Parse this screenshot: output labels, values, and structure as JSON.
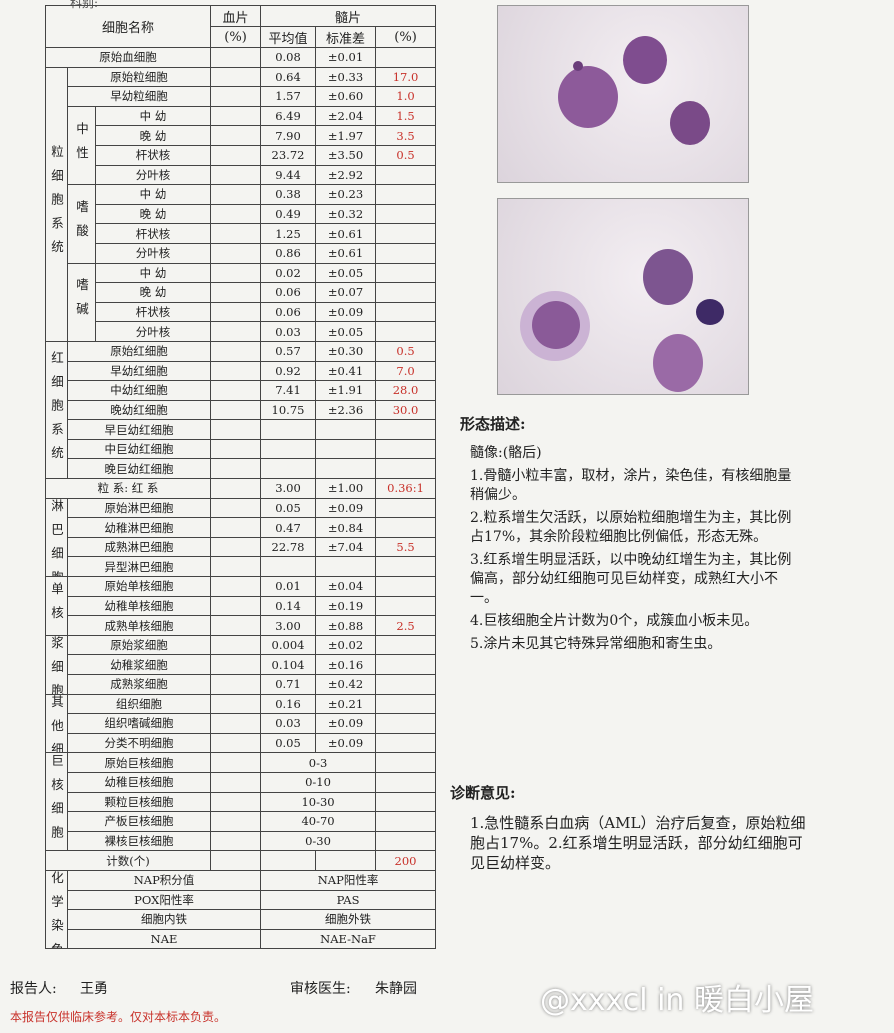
{
  "header": {
    "department": "科别:"
  },
  "table": {
    "columns": {
      "cell_name": "细胞名称",
      "blood": "血片",
      "blood_unit": "(%)",
      "marrow": "髓片",
      "mean": "平均值",
      "sd": "标准差",
      "marrow_unit": "(%)"
    },
    "sections": [
      {
        "rows": [
          {
            "name": "原始血细胞",
            "mean": "0.08",
            "sd": "±0.01"
          }
        ]
      },
      {
        "label": "粒细胞系统",
        "rows": [
          {
            "name": "原始粒细胞",
            "mean": "0.64",
            "sd": "±0.33",
            "pct": "17.0"
          },
          {
            "name": "早幼粒细胞",
            "mean": "1.57",
            "sd": "±0.60",
            "pct": "1.0"
          },
          {
            "label": "中性",
            "rows": [
              {
                "name": "中 幼",
                "mean": "6.49",
                "sd": "±2.04",
                "pct": "1.5"
              },
              {
                "name": "晚 幼",
                "mean": "7.90",
                "sd": "±1.97",
                "pct": "3.5"
              },
              {
                "name": "杆状核",
                "mean": "23.72",
                "sd": "±3.50",
                "pct": "0.5"
              },
              {
                "name": "分叶核",
                "mean": "9.44",
                "sd": "±2.92"
              }
            ]
          },
          {
            "label": "嗜酸",
            "rows": [
              {
                "name": "中 幼",
                "mean": "0.38",
                "sd": "±0.23"
              },
              {
                "name": "晚 幼",
                "mean": "0.49",
                "sd": "±0.32"
              },
              {
                "name": "杆状核",
                "mean": "1.25",
                "sd": "±0.61"
              },
              {
                "name": "分叶核",
                "mean": "0.86",
                "sd": "±0.61"
              }
            ]
          },
          {
            "label": "嗜碱",
            "rows": [
              {
                "name": "中 幼",
                "mean": "0.02",
                "sd": "±0.05"
              },
              {
                "name": "晚 幼",
                "mean": "0.06",
                "sd": "±0.07"
              },
              {
                "name": "杆状核",
                "mean": "0.06",
                "sd": "±0.09"
              },
              {
                "name": "分叶核",
                "mean": "0.03",
                "sd": "±0.05"
              }
            ]
          }
        ]
      },
      {
        "label": "红细胞系统",
        "rows": [
          {
            "name": "原始红细胞",
            "mean": "0.57",
            "sd": "±0.30",
            "pct": "0.5"
          },
          {
            "name": "早幼红细胞",
            "mean": "0.92",
            "sd": "±0.41",
            "pct": "7.0"
          },
          {
            "name": "中幼红细胞",
            "mean": "7.41",
            "sd": "±1.91",
            "pct": "28.0"
          },
          {
            "name": "晚幼红细胞",
            "mean": "10.75",
            "sd": "±2.36",
            "pct": "30.0"
          },
          {
            "name": "早巨幼红细胞"
          },
          {
            "name": "中巨幼红细胞"
          },
          {
            "name": "晚巨幼红细胞"
          }
        ]
      },
      {
        "rows": [
          {
            "name": "粒 系: 红 系",
            "mean": "3.00",
            "sd": "±1.00",
            "pct": "0.36:1"
          }
        ]
      },
      {
        "label": "淋巴细胞",
        "rows": [
          {
            "name": "原始淋巴细胞",
            "mean": "0.05",
            "sd": "±0.09"
          },
          {
            "name": "幼稚淋巴细胞",
            "mean": "0.47",
            "sd": "±0.84"
          },
          {
            "name": "成熟淋巴细胞",
            "mean": "22.78",
            "sd": "±7.04",
            "pct": "5.5"
          },
          {
            "name": "异型淋巴细胞"
          }
        ]
      },
      {
        "label": "单核",
        "rows": [
          {
            "name": "原始单核细胞",
            "mean": "0.01",
            "sd": "±0.04"
          },
          {
            "name": "幼稚单核细胞",
            "mean": "0.14",
            "sd": "±0.19"
          },
          {
            "name": "成熟单核细胞",
            "mean": "3.00",
            "sd": "±0.88",
            "pct": "2.5"
          }
        ]
      },
      {
        "label": "浆细胞",
        "rows": [
          {
            "name": "原始浆细胞",
            "mean": "0.004",
            "sd": "±0.02"
          },
          {
            "name": "幼稚浆细胞",
            "mean": "0.104",
            "sd": "±0.16"
          },
          {
            "name": "成熟浆细胞",
            "mean": "0.71",
            "sd": "±0.42"
          }
        ]
      },
      {
        "label": "其他细胞",
        "rows": [
          {
            "name": "组织细胞",
            "mean": "0.16",
            "sd": "±0.21"
          },
          {
            "name": "组织嗜碱细胞",
            "mean": "0.03",
            "sd": "±0.09"
          },
          {
            "name": "分类不明细胞",
            "mean": "0.05",
            "sd": "±0.09"
          }
        ]
      },
      {
        "label": "巨核细胞",
        "rows": [
          {
            "name": "原始巨核细胞",
            "range": "0-3"
          },
          {
            "name": "幼稚巨核细胞",
            "range": "0-10"
          },
          {
            "name": "颗粒巨核细胞",
            "range": "10-30"
          },
          {
            "name": "产板巨核细胞",
            "range": "40-70"
          },
          {
            "name": "裸核巨核细胞",
            "range": "0-30"
          }
        ]
      },
      {
        "rows": [
          {
            "name": "计数(个)",
            "pct": "200"
          }
        ]
      },
      {
        "label": "化学染色",
        "rows": [
          {
            "left": "NAP积分值",
            "right": "NAP阳性率"
          },
          {
            "left": "POX阳性率",
            "right": "PAS"
          },
          {
            "left": "细胞内铁",
            "right": "细胞外铁"
          },
          {
            "left": "NAE",
            "right": "NAE-NaF"
          }
        ]
      }
    ]
  },
  "description": {
    "title": "形态描述:",
    "lines": [
      "髓像:(骼后)",
      "1.骨髓小粒丰富，取材，涂片，染色佳，有核细胞量稍偏少。",
      "2.粒系增生欠活跃，以原始粒细胞增生为主，其比例占17%，其余阶段粒细胞比例偏低，形态无殊。",
      "3.红系增生明显活跃，以中晚幼红增生为主，其比例偏高，部分幼红细胞可见巨幼样变，成熟红大小不一。",
      "4.巨核细胞全片计数为0个，成簇血小板未见。",
      "5.涂片未见其它特殊异常细胞和寄生虫。"
    ]
  },
  "diagnosis": {
    "title": "诊断意见:",
    "text": "1.急性髓系白血病（AML）治疗后复查，原始粒细胞占17%。2.红系增生明显活跃，部分幼红细胞可见巨幼样变。"
  },
  "footer": {
    "reporter_label": "报告人:",
    "reporter": "王勇",
    "reviewer_label": "审核医生:",
    "reviewer": "朱静园",
    "watermark": "@xxxcl in 暖白小屋",
    "note": "本报告仅供临床参考。仅对本标本负责。"
  }
}
